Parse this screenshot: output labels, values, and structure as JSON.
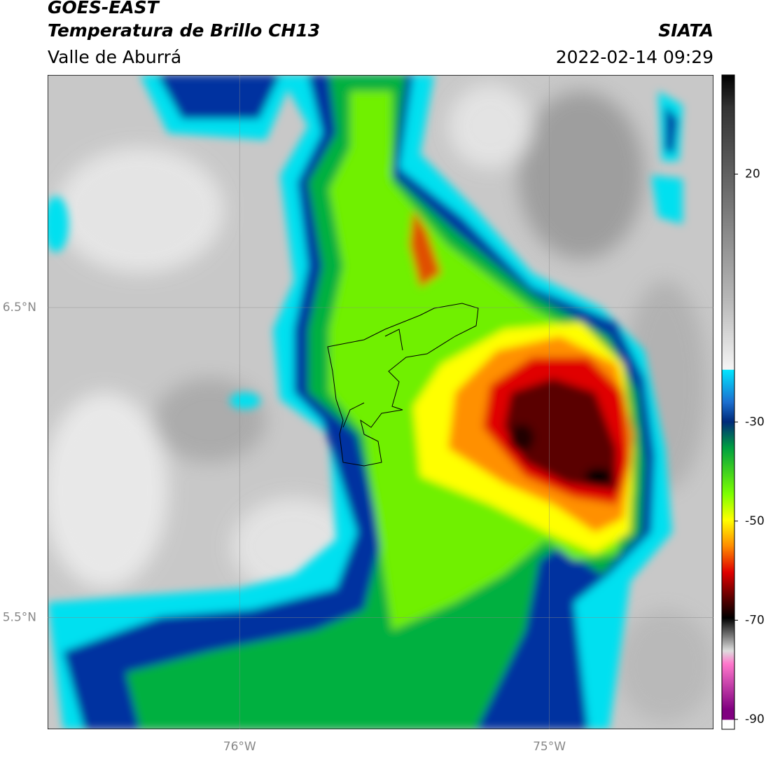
{
  "header": {
    "title": "GOES-EAST",
    "subtitle": "Temperatura de Brillo CH13",
    "region": "Valle de Aburrá",
    "source": "SIATA",
    "timestamp": "2022-02-14 09:29"
  },
  "map": {
    "lonlim": [
      -76.62,
      -74.47
    ],
    "latlim": [
      5.14,
      7.25
    ],
    "lonticks": [
      {
        "value": -76,
        "label": "76°W"
      },
      {
        "value": -75,
        "label": "75°W"
      }
    ],
    "latticks": [
      {
        "value": 6.5,
        "label": "6.5°N"
      },
      {
        "value": 5.5,
        "label": "5.5°N"
      }
    ],
    "grid": true
  },
  "colorbar": {
    "lim": [
      -92,
      40
    ],
    "ticks": [
      20,
      -30,
      -50,
      -70,
      -90
    ]
  }
}
